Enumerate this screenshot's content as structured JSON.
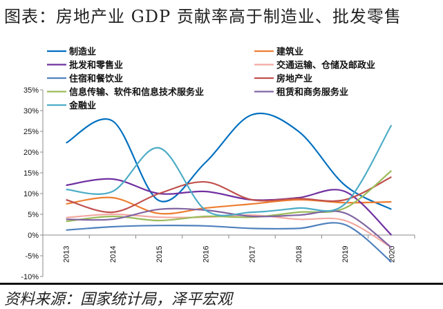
{
  "title": "图表：房地产业 GDP 贡献率高于制造业、批发零售",
  "source": "资料来源：国家统计局，泽平宏观",
  "chart_data": {
    "type": "line",
    "title": "",
    "xlabel": "",
    "ylabel": "",
    "x": [
      "2013",
      "2014",
      "2015",
      "2016",
      "2017",
      "2018",
      "2019",
      "2020"
    ],
    "ylim": [
      -10,
      35
    ],
    "yticks": [
      "35%",
      "30%",
      "25%",
      "20%",
      "15%",
      "10%",
      "5%",
      "0%",
      "-5%",
      "-10%"
    ],
    "ytick_values": [
      35,
      30,
      25,
      20,
      15,
      10,
      5,
      0,
      -5,
      -10
    ],
    "grid": false,
    "legend_placement": "top",
    "series": [
      {
        "name": "制造业",
        "color": "#0070C0",
        "values": [
          22.2,
          27.5,
          8.3,
          17.5,
          29,
          25,
          12,
          6.2
        ]
      },
      {
        "name": "建筑业",
        "color": "#ED7D31",
        "values": [
          7.5,
          9,
          5.2,
          6.5,
          7.5,
          8.5,
          7.8,
          8
        ]
      },
      {
        "name": "批发和零售业",
        "color": "#7030A0",
        "values": [
          12,
          13.5,
          10,
          10.5,
          8.5,
          9,
          10.5,
          0
        ]
      },
      {
        "name": "交通运输、仓储及邮政业",
        "color": "#F2A9A2",
        "values": [
          4.2,
          5,
          4.3,
          4.3,
          4.8,
          3.8,
          3.5,
          -3
        ]
      },
      {
        "name": "住宿和餐饮业",
        "color": "#4F81BD",
        "values": [
          1.2,
          2,
          2.3,
          2.2,
          1.6,
          1.6,
          2.5,
          -6.5
        ]
      },
      {
        "name": "房地产业",
        "color": "#C0504D",
        "values": [
          8.5,
          5.5,
          10,
          12.8,
          8.5,
          8.8,
          8.5,
          14
        ]
      },
      {
        "name": "信息传输、软件和信息技术服务业",
        "color": "#9BBB59",
        "values": [
          3.3,
          4.5,
          3.5,
          4.5,
          4.3,
          5.5,
          6.5,
          15.5
        ]
      },
      {
        "name": "租赁和商务服务业",
        "color": "#8064A2",
        "values": [
          3.8,
          3.8,
          6.2,
          6,
          4.5,
          4.8,
          5.3,
          -3
        ]
      },
      {
        "name": "金融业",
        "color": "#4BACC6",
        "values": [
          11,
          10.5,
          21,
          6,
          5.5,
          6.5,
          7.5,
          26.5
        ]
      }
    ]
  }
}
